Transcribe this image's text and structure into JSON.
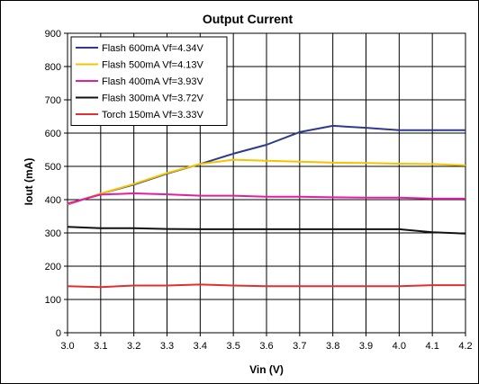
{
  "chart_data": {
    "type": "line",
    "title": "Output Current",
    "xlabel": "Vin (V)",
    "ylabel": "Iout (mA)",
    "xlim": [
      3.0,
      4.2
    ],
    "ylim": [
      0,
      900
    ],
    "x_ticks": [
      "3.0",
      "3.1",
      "3.2",
      "3.3",
      "3.4",
      "3.5",
      "3.6",
      "3.7",
      "3.8",
      "3.9",
      "4.0",
      "4.1",
      "4.2"
    ],
    "y_ticks": [
      "0",
      "100",
      "200",
      "300",
      "400",
      "500",
      "600",
      "700",
      "800",
      "900"
    ],
    "grid": true,
    "legend_position": "top-left",
    "series": [
      {
        "name": "Flash 600mA Vf=4.34V",
        "color": "#2e3a8c",
        "x": [
          3.0,
          3.1,
          3.2,
          3.3,
          3.4,
          3.5,
          3.6,
          3.7,
          3.8,
          3.9,
          4.0,
          4.1,
          4.2
        ],
        "values": [
          385,
          418,
          445,
          478,
          507,
          538,
          565,
          603,
          622,
          616,
          609,
          609,
          609
        ]
      },
      {
        "name": "Flash 500mA Vf=4.13V",
        "color": "#f5c400",
        "x": [
          3.0,
          3.1,
          3.2,
          3.3,
          3.4,
          3.5,
          3.6,
          3.7,
          3.8,
          3.9,
          4.0,
          4.1,
          4.2
        ],
        "values": [
          386,
          418,
          447,
          480,
          507,
          520,
          517,
          514,
          511,
          510,
          508,
          507,
          503
        ]
      },
      {
        "name": "Flash 400mA Vf=3.93V",
        "color": "#e020a0",
        "x": [
          3.0,
          3.1,
          3.2,
          3.3,
          3.4,
          3.5,
          3.6,
          3.7,
          3.8,
          3.9,
          4.0,
          4.1,
          4.2
        ],
        "values": [
          388,
          415,
          419,
          416,
          412,
          412,
          409,
          409,
          407,
          406,
          406,
          403,
          403
        ]
      },
      {
        "name": "Flash 300mA Vf=3.72V",
        "color": "#111111",
        "x": [
          3.0,
          3.1,
          3.2,
          3.3,
          3.4,
          3.5,
          3.6,
          3.7,
          3.8,
          3.9,
          4.0,
          4.1,
          4.2
        ],
        "values": [
          318,
          314,
          314,
          312,
          311,
          311,
          311,
          311,
          311,
          311,
          311,
          302,
          298
        ]
      },
      {
        "name": "Torch 150mA Vf=3.33V",
        "color": "#e03030",
        "x": [
          3.0,
          3.1,
          3.2,
          3.3,
          3.4,
          3.5,
          3.6,
          3.7,
          3.8,
          3.9,
          4.0,
          4.1,
          4.2
        ],
        "values": [
          140,
          137,
          142,
          142,
          145,
          142,
          140,
          140,
          140,
          140,
          140,
          143,
          143
        ]
      }
    ]
  }
}
